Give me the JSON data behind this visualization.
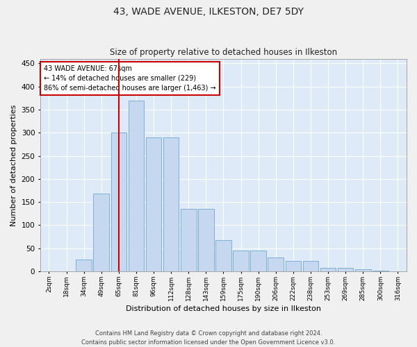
{
  "title": "43, WADE AVENUE, ILKESTON, DE7 5DY",
  "subtitle": "Size of property relative to detached houses in Ilkeston",
  "xlabel": "Distribution of detached houses by size in Ilkeston",
  "ylabel": "Number of detached properties",
  "footer_line1": "Contains HM Land Registry data © Crown copyright and database right 2024.",
  "footer_line2": "Contains public sector information licensed under the Open Government Licence v3.0.",
  "bar_labels": [
    "2sqm",
    "18sqm",
    "34sqm",
    "49sqm",
    "65sqm",
    "81sqm",
    "96sqm",
    "112sqm",
    "128sqm",
    "143sqm",
    "159sqm",
    "175sqm",
    "190sqm",
    "206sqm",
    "222sqm",
    "238sqm",
    "253sqm",
    "269sqm",
    "285sqm",
    "300sqm",
    "316sqm"
  ],
  "bar_values": [
    0,
    0,
    25,
    168,
    300,
    370,
    290,
    290,
    135,
    135,
    68,
    45,
    45,
    30,
    22,
    22,
    8,
    8,
    5,
    2,
    0
  ],
  "bar_color": "#c5d8f0",
  "bar_edge_color": "#7aafd4",
  "bg_color": "#deeaf8",
  "grid_color": "#ffffff",
  "vline_x_index": 4,
  "vline_color": "#cc0000",
  "annotation_text": "43 WADE AVENUE: 67sqm\n← 14% of detached houses are smaller (229)\n86% of semi-detached houses are larger (1,463) →",
  "annotation_box_color": "#ffffff",
  "annotation_border_color": "#cc0000",
  "ylim": [
    0,
    460
  ],
  "yticks": [
    0,
    50,
    100,
    150,
    200,
    250,
    300,
    350,
    400,
    450
  ],
  "fig_width": 6.0,
  "fig_height": 5.0,
  "dpi": 100
}
